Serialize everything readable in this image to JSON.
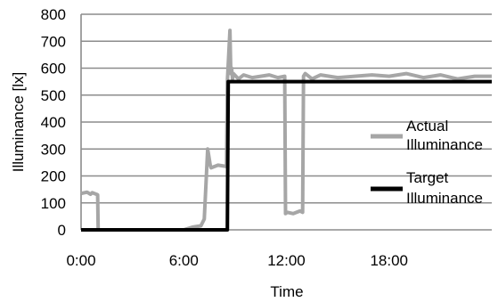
{
  "chart_data": {
    "type": "line",
    "title": "",
    "xlabel": "Time",
    "ylabel": "Illuminance [lx]",
    "x_unit": "hours",
    "xlim": [
      0,
      24
    ],
    "ylim": [
      0,
      800
    ],
    "x_ticks": [
      0,
      6,
      12,
      18
    ],
    "x_tick_labels": [
      "0:00",
      "6:00",
      "12:00",
      "18:00"
    ],
    "y_ticks": [
      0,
      100,
      200,
      300,
      400,
      500,
      600,
      700,
      800
    ],
    "y_tick_labels": [
      "0",
      "100",
      "200",
      "300",
      "400",
      "500",
      "600",
      "700",
      "800"
    ],
    "grid": "horizontal",
    "legend_position": "right",
    "series": [
      {
        "name": "Actual Illuminance",
        "color": "#a6a6a6",
        "x": [
          0,
          0.35,
          0.55,
          0.65,
          0.9,
          0.97,
          1.0,
          1.05,
          3.0,
          6.0,
          6.5,
          7.0,
          7.2,
          7.4,
          7.45,
          7.55,
          7.6,
          8.0,
          8.5,
          8.55,
          8.7,
          8.75,
          8.8,
          8.85,
          8.9,
          9.2,
          9.5,
          10.0,
          10.5,
          11.0,
          11.5,
          11.9,
          11.95,
          12.05,
          12.4,
          12.8,
          12.95,
          13.0,
          13.1,
          13.5,
          14.0,
          15.0,
          16.0,
          17.0,
          18.0,
          19.0,
          20.0,
          21.0,
          22.0,
          23.0,
          24.0
        ],
        "y": [
          135,
          140,
          132,
          138,
          132,
          130,
          0,
          0,
          0,
          0,
          10,
          15,
          40,
          300,
          280,
          240,
          230,
          240,
          235,
          550,
          740,
          580,
          600,
          560,
          580,
          560,
          575,
          565,
          570,
          575,
          565,
          570,
          60,
          65,
          60,
          70,
          65,
          570,
          580,
          560,
          575,
          565,
          570,
          575,
          570,
          580,
          565,
          575,
          560,
          570,
          570
        ]
      },
      {
        "name": "Target Illuminance",
        "color": "#000000",
        "x": [
          0,
          8.55,
          8.6,
          24
        ],
        "y": [
          0,
          0,
          550,
          550
        ]
      }
    ],
    "legend": [
      {
        "line1": "Actual",
        "line2": "Illuminance"
      },
      {
        "line1": "Target",
        "line2": "Illuminance"
      }
    ]
  }
}
